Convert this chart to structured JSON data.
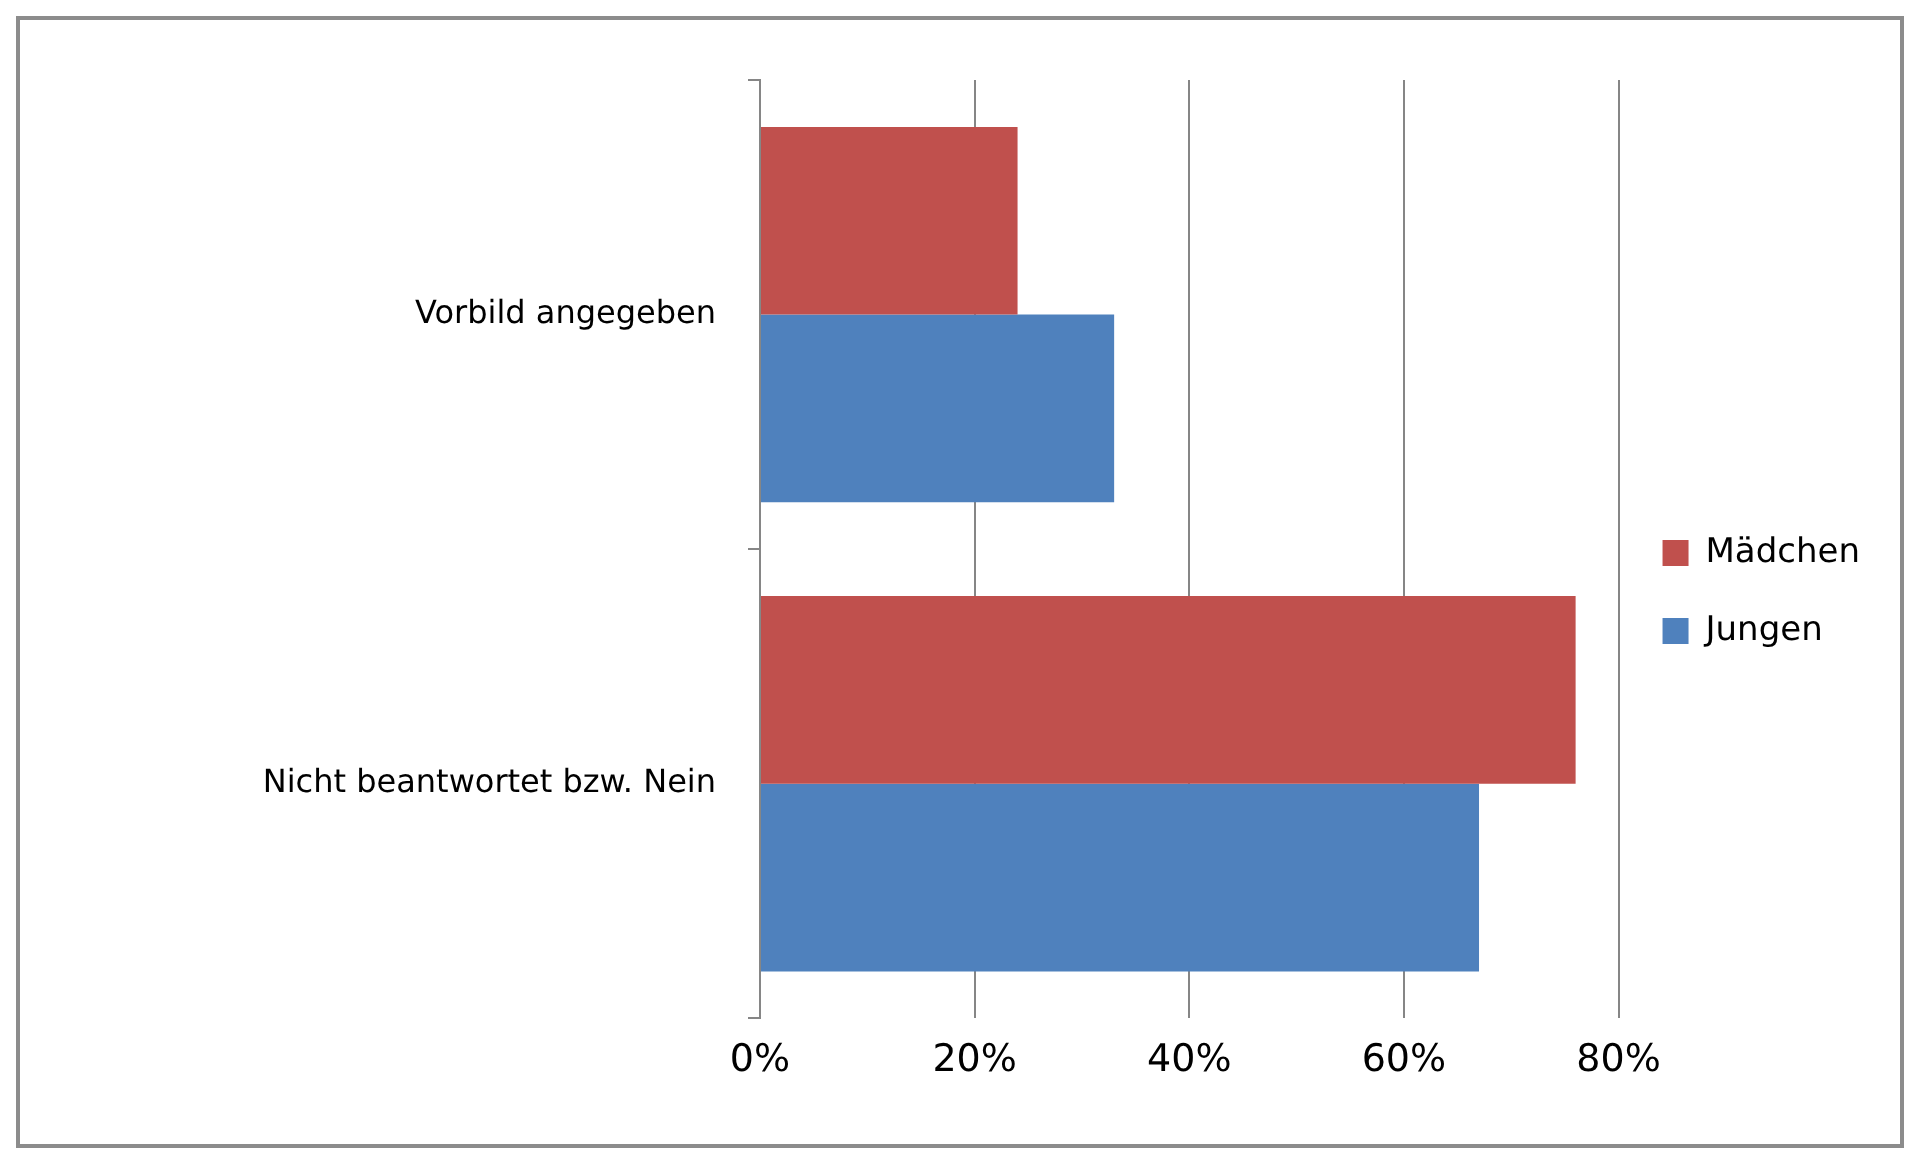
{
  "chart_data": {
    "type": "bar",
    "orientation": "horizontal",
    "categories": [
      "Vorbild angegeben",
      "Nicht beantwortet bzw. Nein"
    ],
    "series": [
      {
        "name": "Mädchen",
        "color": "#c0504d",
        "values": [
          24,
          76
        ]
      },
      {
        "name": "Jungen",
        "color": "#4f81bd",
        "values": [
          33,
          67
        ]
      }
    ],
    "xlim": [
      0,
      80
    ],
    "xticks": [
      {
        "value": 0,
        "label": "0%"
      },
      {
        "value": 20,
        "label": "20%"
      },
      {
        "value": 40,
        "label": "40%"
      },
      {
        "value": 60,
        "label": "60%"
      },
      {
        "value": 80,
        "label": "80%"
      }
    ],
    "grid": "x",
    "legend": "right"
  }
}
